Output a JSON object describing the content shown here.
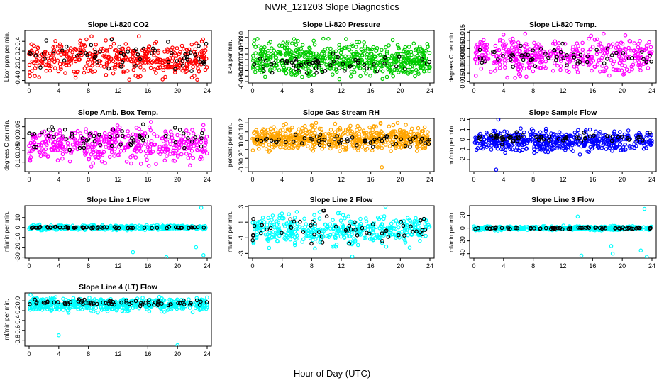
{
  "figure": {
    "title": "NWR_121203  Slope Diagnostics",
    "xlabel": "Hour of Day (UTC)"
  },
  "chart_data": [
    {
      "type": "scatter",
      "title": "Slope Li-820 CO2",
      "ylabel": "Licor ppm per min.",
      "xlim": [
        0,
        24
      ],
      "ylim": [
        -0.45,
        0.62
      ],
      "xticks": [
        "0",
        "4",
        "8",
        "12",
        "16",
        "20",
        "24"
      ],
      "yticks": [
        -0.4,
        -0.2,
        0.0,
        0.2,
        0.4
      ],
      "ytick_labels": [
        "-0.4",
        "-0.2",
        "0.0",
        "0.2",
        "0.4"
      ],
      "grid": false,
      "series": [
        {
          "color": "#ff0000",
          "marker": "circle",
          "x_range": [
            0,
            24
          ],
          "y_range": [
            -0.4,
            0.5
          ],
          "count": 420
        },
        {
          "color": "#000000",
          "marker": "circle",
          "x_range": [
            0,
            24
          ],
          "y_range": [
            -0.3,
            0.5
          ],
          "count": 60
        }
      ],
      "highlight_points": [
        {
          "x": 13.5,
          "y": -0.38
        },
        {
          "x": 14.8,
          "y": 0.5
        }
      ]
    },
    {
      "type": "scatter",
      "title": "Slope Li-820 Pressure",
      "ylabel": "kPa per min.",
      "xlim": [
        0,
        24
      ],
      "ylim": [
        -0.065,
        0.125
      ],
      "xticks": [
        "0",
        "4",
        "8",
        "12",
        "16",
        "20",
        "24"
      ],
      "yticks": [
        -0.06,
        -0.04,
        -0.02,
        0.0,
        0.02,
        0.04,
        0.06,
        0.08,
        0.1
      ],
      "ytick_labels": [
        "-0.06",
        "-0.04",
        "-0.02",
        "0.00",
        "0.02",
        "0.04",
        "0.06",
        "0.08",
        "0.10"
      ],
      "grid": false,
      "series": [
        {
          "color": "#00cc00",
          "marker": "circle",
          "x_range": [
            0,
            24
          ],
          "y_range": [
            -0.06,
            0.1
          ],
          "count": 600
        },
        {
          "color": "#000000",
          "marker": "circle",
          "x_range": [
            0,
            24
          ],
          "y_range": [
            -0.04,
            0.05
          ],
          "count": 60
        }
      ]
    },
    {
      "type": "scatter",
      "title": "Slope Li-820 Temp.",
      "ylabel": "degrees C per min.",
      "xlim": [
        0,
        24
      ],
      "ylim": [
        -0.016,
        0.016
      ],
      "xticks": [
        "0",
        "4",
        "8",
        "12",
        "16",
        "20",
        "24"
      ],
      "yticks": [
        -0.015,
        -0.01,
        -0.005,
        0.0,
        0.005,
        0.01,
        0.015
      ],
      "ytick_labels": [
        "-0.015",
        "-0.010",
        "-0.005",
        "0.000",
        "0.005",
        "0.010",
        "0.015"
      ],
      "grid": false,
      "series": [
        {
          "color": "#ff00ff",
          "marker": "circle",
          "x_range": [
            0,
            24
          ],
          "y_range": [
            -0.013,
            0.014
          ],
          "count": 420
        },
        {
          "color": "#000000",
          "marker": "circle",
          "x_range": [
            0,
            24
          ],
          "y_range": [
            -0.008,
            0.008
          ],
          "count": 60
        }
      ]
    },
    {
      "type": "scatter",
      "title": "Slope Amb. Box Temp.",
      "ylabel": "degrees C per min.",
      "xlim": [
        0,
        24
      ],
      "ylim": [
        -0.14,
        0.085
      ],
      "xticks": [
        "0",
        "4",
        "8",
        "12",
        "16",
        "20",
        "24"
      ],
      "yticks": [
        -0.1,
        -0.05,
        0.0,
        0.05
      ],
      "ytick_labels": [
        "-0.10",
        "-0.05",
        "0.00",
        "0.05"
      ],
      "grid": false,
      "series": [
        {
          "color": "#ff00ff",
          "marker": "circle",
          "x_range": [
            0,
            24
          ],
          "y_range": [
            -0.12,
            0.07
          ],
          "count": 420
        },
        {
          "color": "#000000",
          "marker": "circle",
          "x_range": [
            0,
            24
          ],
          "y_range": [
            -0.06,
            0.06
          ],
          "count": 60
        }
      ]
    },
    {
      "type": "scatter",
      "title": "Slope Gas Stream RH",
      "ylabel": "percent per min.",
      "xlim": [
        0,
        24
      ],
      "ylim": [
        -0.35,
        0.25
      ],
      "xticks": [
        "0",
        "4",
        "8",
        "12",
        "16",
        "20",
        "24"
      ],
      "yticks": [
        -0.3,
        -0.2,
        -0.1,
        0.0,
        0.1,
        0.2
      ],
      "ytick_labels": [
        "-0.3",
        "-0.2",
        "-0.1",
        "0.0",
        "0.1",
        "0.2"
      ],
      "grid": false,
      "series": [
        {
          "color": "#ffa500",
          "marker": "circle",
          "x_range": [
            0,
            24
          ],
          "y_range": [
            -0.15,
            0.2
          ],
          "count": 600
        },
        {
          "color": "#000000",
          "marker": "circle",
          "x_range": [
            0,
            24
          ],
          "y_range": [
            -0.08,
            0.1
          ],
          "count": 60
        }
      ],
      "highlight_points": [
        {
          "x": 17.5,
          "y": -0.3
        }
      ]
    },
    {
      "type": "scatter",
      "title": "Slope Sample Flow",
      "ylabel": "ml/min per min.",
      "xlim": [
        0,
        24
      ],
      "ylim": [
        -3.2,
        2.1
      ],
      "xticks": [
        "0",
        "4",
        "8",
        "12",
        "16",
        "20",
        "24"
      ],
      "yticks": [
        -2,
        -1,
        0,
        1,
        2
      ],
      "ytick_labels": [
        "-2",
        "-1",
        "0",
        "1",
        "2"
      ],
      "grid": false,
      "series": [
        {
          "color": "#0000ff",
          "marker": "circle",
          "x_range": [
            0,
            24
          ],
          "y_range": [
            -1.5,
            1.2
          ],
          "count": 500
        },
        {
          "color": "#000000",
          "marker": "circle",
          "x_range": [
            0,
            24
          ],
          "y_range": [
            -0.5,
            0.8
          ],
          "count": 60
        }
      ],
      "highlight_points": [
        {
          "x": 3,
          "y": -3.0
        },
        {
          "x": 3.3,
          "y": 2.0
        }
      ]
    },
    {
      "type": "scatter",
      "title": "Slope Line 1 Flow",
      "ylabel": "ml/min per min.",
      "xlim": [
        0,
        24
      ],
      "ylim": [
        -31,
        22
      ],
      "xticks": [
        "0",
        "4",
        "8",
        "12",
        "16",
        "20",
        "24"
      ],
      "yticks": [
        -30,
        -20,
        -10,
        0,
        10
      ],
      "ytick_labels": [
        "-30",
        "-20",
        "-10",
        "0",
        "10"
      ],
      "grid": false,
      "series": [
        {
          "color": "#00ffff",
          "marker": "circle",
          "x_range": [
            0,
            24
          ],
          "y_range": [
            -3,
            3
          ],
          "count": 420
        },
        {
          "color": "#000000",
          "marker": "circle",
          "x_range": [
            0,
            24
          ],
          "y_range": [
            -1,
            1
          ],
          "count": 70
        }
      ],
      "highlight_points": [
        {
          "x": 14,
          "y": -25
        },
        {
          "x": 22.5,
          "y": -20
        },
        {
          "x": 23.5,
          "y": -28
        },
        {
          "x": 23.2,
          "y": 20
        },
        {
          "x": 18.5,
          "y": -30
        }
      ]
    },
    {
      "type": "scatter",
      "title": "Slope Line 2 Flow",
      "ylabel": "ml/min per min.",
      "xlim": [
        0,
        24
      ],
      "ylim": [
        -3.6,
        3.1
      ],
      "xticks": [
        "0",
        "4",
        "8",
        "12",
        "16",
        "20",
        "24"
      ],
      "yticks": [
        -3,
        -1,
        1,
        3
      ],
      "ytick_labels": [
        "-3",
        "-1",
        "1",
        "3"
      ],
      "grid": false,
      "series": [
        {
          "color": "#00ffff",
          "marker": "circle",
          "x_range": [
            0,
            24
          ],
          "y_range": [
            -2.5,
            2.5
          ],
          "count": 420
        },
        {
          "color": "#000000",
          "marker": "circle",
          "x_range": [
            0,
            24
          ],
          "y_range": [
            -2.5,
            2.5
          ],
          "count": 60
        }
      ],
      "highlight_points": [
        {
          "x": 13.5,
          "y": -3.4
        },
        {
          "x": 18,
          "y": 3.0
        }
      ]
    },
    {
      "type": "scatter",
      "title": "Slope Line 3 Flow",
      "ylabel": "ml/min per min.",
      "xlim": [
        0,
        24
      ],
      "ylim": [
        -47,
        35
      ],
      "xticks": [
        "0",
        "4",
        "8",
        "12",
        "16",
        "20",
        "24"
      ],
      "yticks": [
        -40,
        -20,
        0,
        20
      ],
      "ytick_labels": [
        "-40",
        "-20",
        "0",
        "20"
      ],
      "grid": false,
      "series": [
        {
          "color": "#00ffff",
          "marker": "circle",
          "x_range": [
            0,
            24
          ],
          "y_range": [
            -4,
            4
          ],
          "count": 420
        },
        {
          "color": "#000000",
          "marker": "circle",
          "x_range": [
            0,
            24
          ],
          "y_range": [
            -2,
            2
          ],
          "count": 70
        }
      ],
      "highlight_points": [
        {
          "x": 14,
          "y": 18
        },
        {
          "x": 14.5,
          "y": -43
        },
        {
          "x": 18.5,
          "y": -28
        },
        {
          "x": 18.7,
          "y": -40
        },
        {
          "x": 22.5,
          "y": -35
        },
        {
          "x": 23,
          "y": 30
        },
        {
          "x": 23.3,
          "y": -45
        }
      ]
    },
    {
      "type": "scatter",
      "title": "Slope Line 4 (LT) Flow",
      "ylabel": "ml/min per min.",
      "xlim": [
        0,
        24
      ],
      "ylim": [
        -0.92,
        0.16
      ],
      "xticks": [
        "0",
        "4",
        "8",
        "12",
        "16",
        "20",
        "24"
      ],
      "yticks": [
        -0.8,
        -0.6,
        -0.4,
        -0.2,
        0.0
      ],
      "ytick_labels": [
        "-0.8",
        "-0.6",
        "-0.4",
        "-0.2",
        "0.0"
      ],
      "grid": false,
      "series": [
        {
          "color": "#00ffff",
          "marker": "circle",
          "x_range": [
            0,
            24
          ],
          "y_range": [
            -0.25,
            0.1
          ],
          "count": 500
        },
        {
          "color": "#000000",
          "marker": "circle",
          "x_range": [
            0,
            24
          ],
          "y_range": [
            -0.12,
            0.05
          ],
          "count": 70
        }
      ],
      "highlight_points": [
        {
          "x": 4,
          "y": -0.7
        },
        {
          "x": 20,
          "y": -0.9
        },
        {
          "x": 0.2,
          "y": 0.12
        }
      ]
    }
  ]
}
